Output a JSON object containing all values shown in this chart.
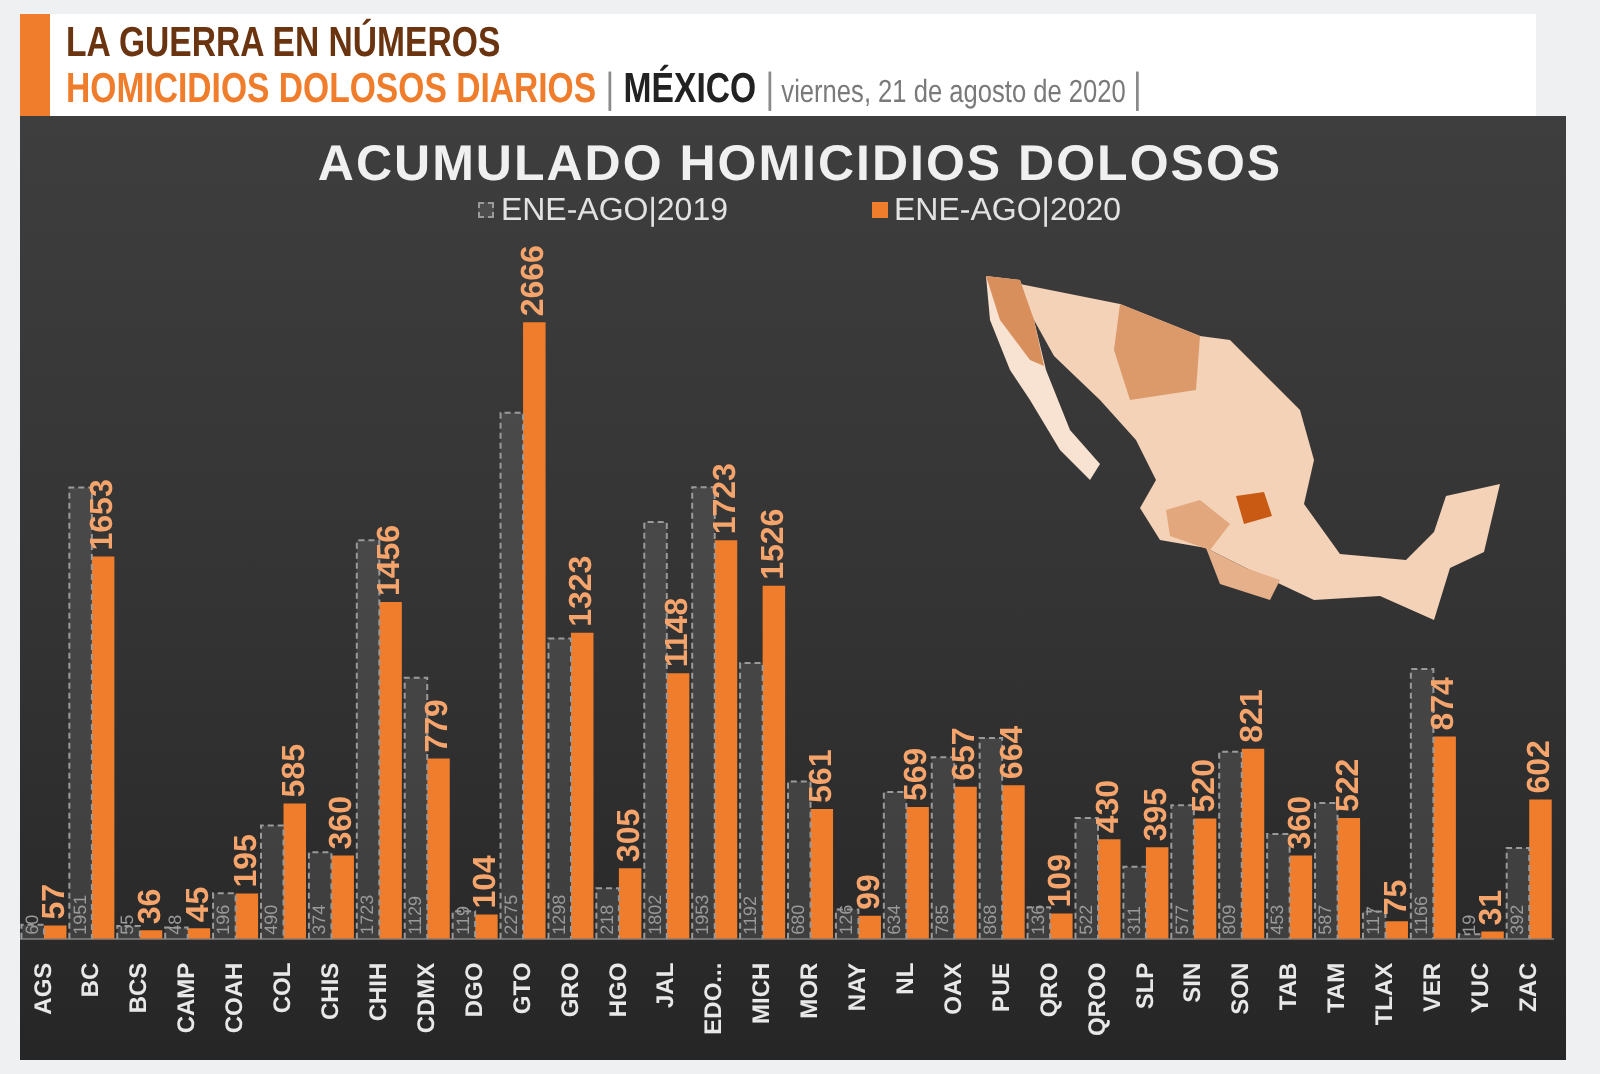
{
  "chart_data": {
    "type": "bar",
    "title": "ACUMULADO HOMICIDIOS DOLOSOS",
    "annotations": [
      "LA GUERRA EN NÚMEROS",
      "HOMICIDIOS DOLOSOS DIARIOS | MÉXICO | viernes, 21 de agosto de 2020 |"
    ],
    "categories": [
      "AGS",
      "BC",
      "BCS",
      "CAMP",
      "COAH",
      "COL",
      "CHIS",
      "CHIH",
      "CDMX",
      "DGO",
      "GTO",
      "GRO",
      "HGO",
      "JAL",
      "EDO...",
      "MICH",
      "MOR",
      "NAY",
      "NL",
      "OAX",
      "PUE",
      "QRO",
      "QROO",
      "SLP",
      "SIN",
      "SON",
      "TAB",
      "TAM",
      "TLAX",
      "VER",
      "YUC",
      "ZAC"
    ],
    "series": [
      {
        "name": "ENE-AGO|2019",
        "color": "#9a9a9a",
        "line_style": "dashed",
        "values": [
          60,
          1951,
          55,
          48,
          196,
          490,
          374,
          1723,
          1129,
          119,
          2275,
          1298,
          218,
          1802,
          1953,
          1192,
          680,
          126,
          634,
          785,
          868,
          136,
          522,
          311,
          577,
          809,
          453,
          587,
          117,
          1166,
          19,
          392
        ]
      },
      {
        "name": "ENE-AGO|2020",
        "color": "#f07d2c",
        "values": [
          57,
          1653,
          36,
          45,
          195,
          585,
          360,
          1456,
          779,
          104,
          2666,
          1323,
          305,
          1148,
          1723,
          1526,
          561,
          99,
          569,
          657,
          664,
          109,
          430,
          395,
          520,
          821,
          360,
          522,
          75,
          874,
          31,
          602
        ]
      }
    ],
    "legend": "top",
    "data_labels": true
  }
}
